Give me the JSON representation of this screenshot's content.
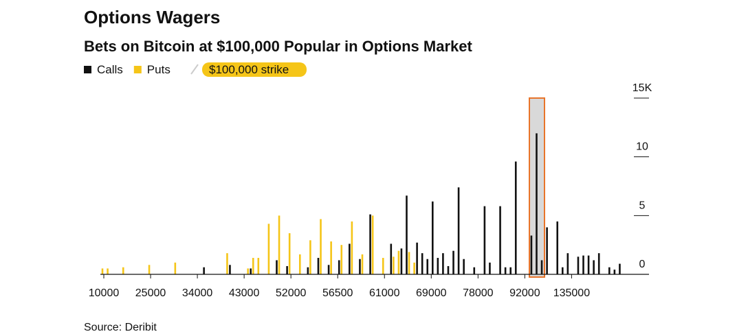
{
  "chart_data": {
    "type": "bar",
    "title": "Options Wagers",
    "subtitle": "Bets on Bitcoin at $100,000 Popular in Options Market",
    "annotation": "$100,000 strike",
    "source": "Source: Deribit",
    "categories": [
      "10000",
      null,
      null,
      null,
      null,
      null,
      null,
      null,
      null,
      "25000",
      null,
      null,
      null,
      null,
      null,
      null,
      null,
      null,
      "34000",
      null,
      null,
      null,
      null,
      null,
      null,
      null,
      null,
      "43000",
      null,
      null,
      null,
      null,
      null,
      null,
      null,
      null,
      "52000",
      null,
      null,
      null,
      null,
      null,
      null,
      null,
      null,
      "56500",
      null,
      null,
      null,
      null,
      null,
      null,
      null,
      null,
      "61000",
      null,
      null,
      null,
      null,
      null,
      null,
      null,
      null,
      "69000",
      null,
      null,
      null,
      null,
      null,
      null,
      null,
      null,
      "78000",
      null,
      null,
      null,
      null,
      null,
      null,
      null,
      null,
      "92000",
      null,
      null,
      null,
      null,
      null,
      null,
      null,
      null,
      "135000",
      null,
      null,
      null,
      null,
      null,
      null,
      null,
      null,
      null
    ],
    "series": [
      {
        "name": "Calls",
        "color": "#111111",
        "values": [
          0,
          0,
          0,
          0,
          0,
          0,
          0,
          0,
          0,
          0,
          0,
          0,
          0,
          0,
          0,
          0,
          0,
          0,
          0,
          0.6,
          0,
          0,
          0,
          0,
          0.8,
          0,
          0,
          0,
          0.5,
          0,
          0,
          0,
          0,
          1.2,
          0,
          0.7,
          0,
          0,
          0,
          0.6,
          0,
          1.4,
          0,
          0.8,
          0,
          1.2,
          0,
          2.6,
          0,
          1.3,
          0,
          5.1,
          0,
          0,
          0,
          2.6,
          0,
          2.2,
          6.7,
          0,
          2.7,
          1.8,
          1.3,
          6.2,
          1.4,
          1.8,
          0.7,
          2.0,
          7.4,
          1.3,
          0,
          0.6,
          0,
          5.8,
          1.0,
          0,
          5.8,
          0.6,
          0.6,
          9.6,
          0,
          0,
          3.3,
          12.0,
          1.2,
          4.0,
          0,
          4.5,
          0.6,
          1.8,
          0,
          1.5,
          1.6,
          1.6,
          1.2,
          1.8,
          0,
          0.6,
          0.4,
          0.9
        ]
      },
      {
        "name": "Puts",
        "color": "#f5c518",
        "values": [
          0.5,
          0.5,
          0,
          0,
          0.6,
          0,
          0,
          0,
          0,
          0.8,
          0,
          0,
          0,
          0,
          1.0,
          0,
          0,
          0,
          0,
          0,
          0,
          0,
          0,
          0,
          1.8,
          0,
          0,
          0,
          0.5,
          1.4,
          1.4,
          0,
          4.3,
          0,
          5.0,
          0,
          3.5,
          0,
          1.7,
          0,
          2.9,
          0,
          4.7,
          0,
          2.8,
          0,
          2.5,
          0,
          4.5,
          0,
          1.7,
          0,
          5.0,
          0,
          1.4,
          0,
          1.5,
          2.0,
          0,
          1.9,
          1.0,
          0,
          0,
          0,
          0,
          0,
          0,
          0,
          0,
          0,
          0,
          0,
          0,
          0,
          0,
          0,
          0,
          0,
          0,
          0,
          0,
          0,
          0,
          0,
          0,
          0,
          0,
          0,
          0,
          0,
          0,
          0,
          0,
          0,
          0,
          0,
          0,
          0,
          0,
          0
        ]
      }
    ],
    "ylim": [
      0,
      15
    ],
    "yticks": [
      0,
      5,
      10,
      {
        "value": 15,
        "label": "15K"
      }
    ]
  }
}
